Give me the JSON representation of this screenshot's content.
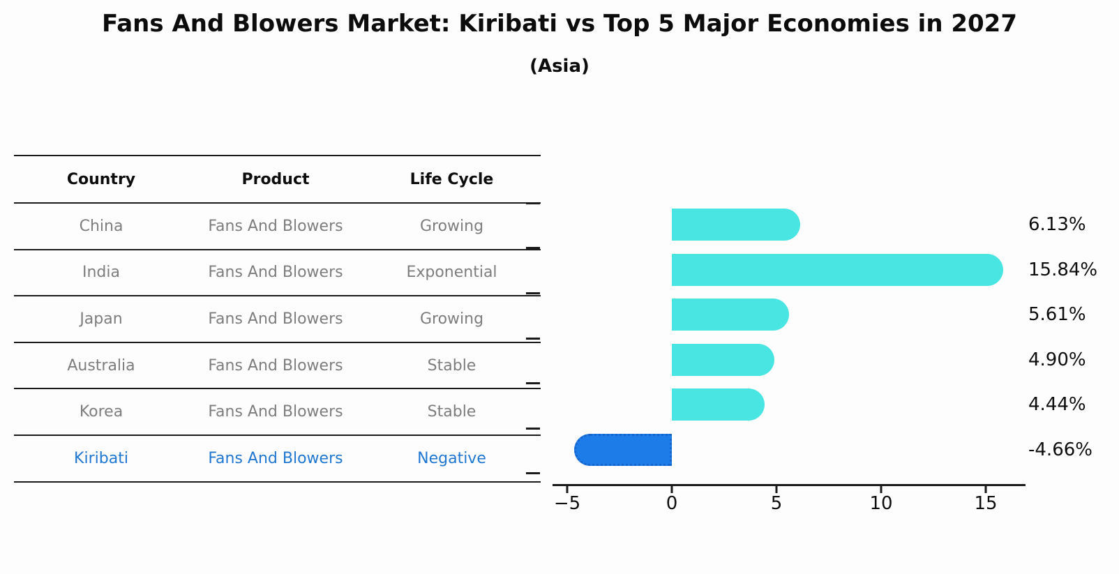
{
  "title": "Fans And Blowers Market: Kiribati vs Top 5 Major Economies in 2027",
  "subtitle": "(Asia)",
  "table": {
    "headers": [
      "Country",
      "Product",
      "Life Cycle"
    ],
    "rows": [
      {
        "country": "China",
        "product": "Fans And Blowers",
        "life_cycle": "Growing",
        "highlight": false
      },
      {
        "country": "India",
        "product": "Fans And Blowers",
        "life_cycle": "Exponential",
        "highlight": false
      },
      {
        "country": "Japan",
        "product": "Fans And Blowers",
        "life_cycle": "Growing",
        "highlight": false
      },
      {
        "country": "Australia",
        "product": "Fans And Blowers",
        "life_cycle": "Stable",
        "highlight": false
      },
      {
        "country": "Korea",
        "product": "Fans And Blowers",
        "life_cycle": "Stable",
        "highlight": false
      },
      {
        "country": "Kiribati",
        "product": "Fans And Blowers",
        "life_cycle": "Negative",
        "highlight": true
      }
    ]
  },
  "chart_data": {
    "type": "bar",
    "orientation": "horizontal",
    "title": "Fans And Blowers Market: Kiribati vs Top 5 Major Economies in 2027",
    "subtitle": "(Asia)",
    "categories": [
      "China",
      "India",
      "Japan",
      "Australia",
      "Korea",
      "Kiribati"
    ],
    "values": [
      6.13,
      15.84,
      5.61,
      4.9,
      4.44,
      -4.66
    ],
    "value_labels": [
      "6.13%",
      "15.84%",
      "5.61%",
      "4.90%",
      "4.44%",
      "-4.66%"
    ],
    "xticks": [
      -5,
      0,
      5,
      10,
      15
    ],
    "xtick_labels": [
      "−5",
      "0",
      "5",
      "10",
      "15"
    ],
    "xlim": [
      -5.7,
      16.9
    ],
    "xlabel": "",
    "ylabel": "",
    "grid": false,
    "legend": false,
    "highlight_index": 5,
    "bar_color": "#48e5e3",
    "highlight_color": "#1e7ce8",
    "highlight_border_color": "#1565cd",
    "highlight_text_color": "#1f77d2",
    "axis_color": "#1a1a1a"
  }
}
